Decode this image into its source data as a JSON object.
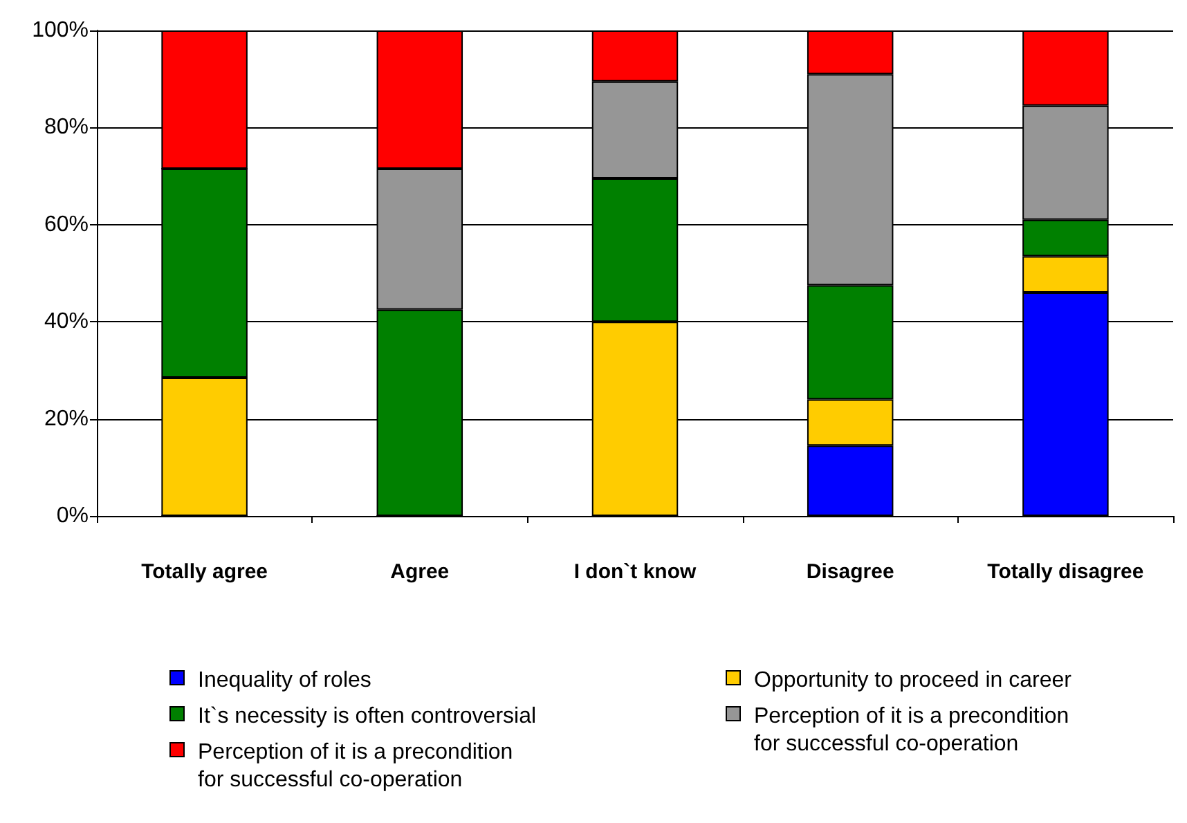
{
  "chart_data": {
    "type": "bar",
    "stacked": true,
    "categories": [
      "Totally agree",
      "Agree",
      "I don`t know",
      "Disagree",
      "Totally disagree"
    ],
    "series": [
      {
        "name": "Inequality of roles",
        "color": "#0000ff",
        "values": [
          0,
          0,
          0,
          14.5,
          46
        ]
      },
      {
        "name": "Opportunity to proceed in career",
        "color": "#ffcc00",
        "values": [
          28.5,
          0,
          40,
          9.5,
          7.5
        ]
      },
      {
        "name": "It`s necessity is often controversial",
        "color": "#008000",
        "values": [
          43,
          42.5,
          29.5,
          23.5,
          7.5
        ]
      },
      {
        "name": "Perception of it is a precondition\nfor successful co-operation",
        "color": "#969696",
        "values": [
          0,
          29,
          20,
          43.5,
          23.5
        ]
      },
      {
        "name": "Perception of it is a precondition\nfor successful co-operation",
        "color": "#ff0000",
        "values": [
          28.5,
          28.5,
          10.5,
          9,
          15.5
        ]
      }
    ],
    "ylim": [
      0,
      100
    ],
    "yticks": [
      {
        "value": 0,
        "label": "0%"
      },
      {
        "value": 20,
        "label": "20%"
      },
      {
        "value": 40,
        "label": "40%"
      },
      {
        "value": 60,
        "label": "60%"
      },
      {
        "value": 80,
        "label": "80%"
      },
      {
        "value": 100,
        "label": "100%"
      }
    ],
    "grid": "y",
    "legend": "bottom"
  }
}
